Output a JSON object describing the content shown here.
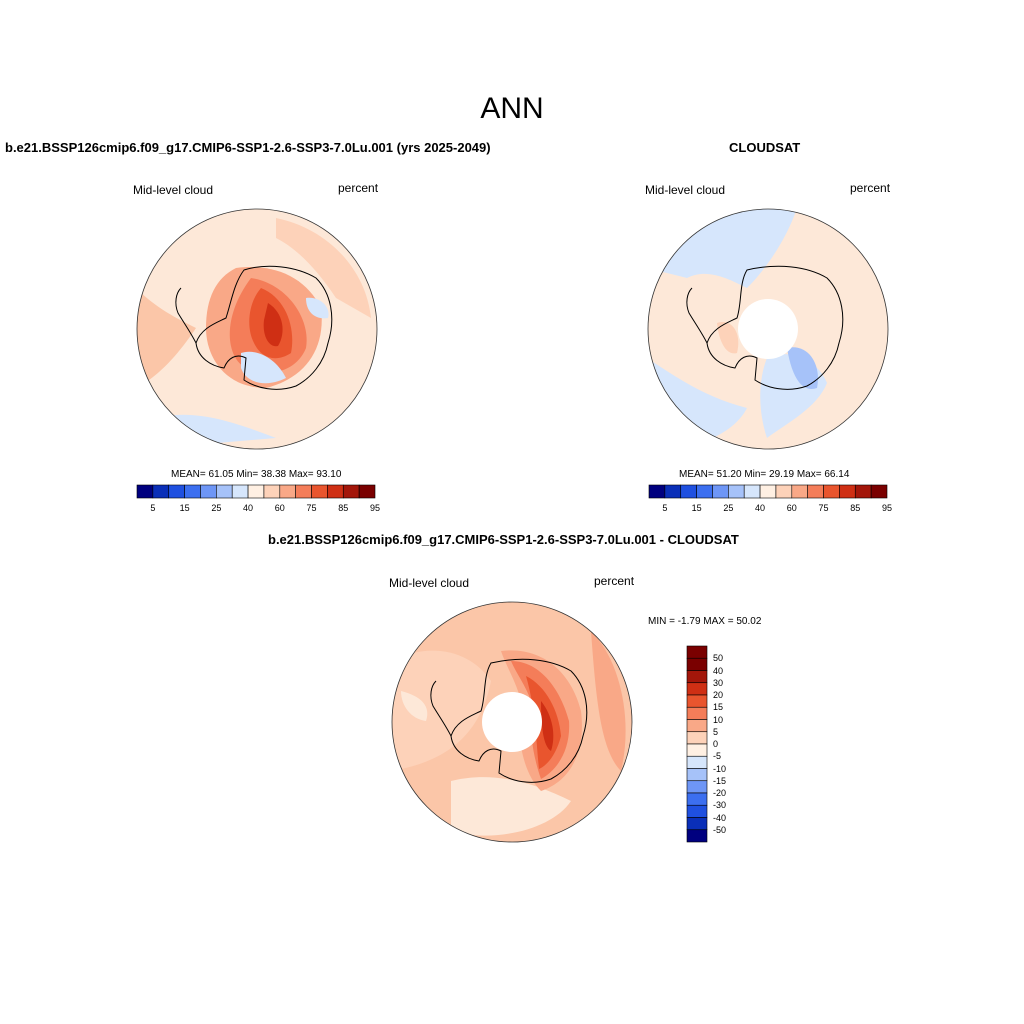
{
  "figure": {
    "title": "ANN",
    "panels": [
      {
        "id": "left",
        "title": "b.e21.BSSP126cmip6.f09_g17.CMIP6-SSP1-2.6-SSP3-7.0Lu.001 (yrs 2025-2049)",
        "variable": "Mid-level cloud",
        "units": "percent",
        "stats": "MEAN=  61.05  Min=  38.38  Max=  93.10",
        "colorbar_ticks": [
          "5",
          "15",
          "25",
          "40",
          "60",
          "75",
          "85",
          "95"
        ]
      },
      {
        "id": "right",
        "title": "CLOUDSAT",
        "variable": "Mid-level cloud",
        "units": "percent",
        "stats": "MEAN=  51.20  Min=  29.19  Max=  66.14",
        "colorbar_ticks": [
          "5",
          "15",
          "25",
          "40",
          "60",
          "75",
          "85",
          "95"
        ]
      },
      {
        "id": "diff",
        "title": "b.e21.BSSP126cmip6.f09_g17.CMIP6-SSP1-2.6-SSP3-7.0Lu.001 - CLOUDSAT",
        "variable": "Mid-level cloud",
        "units": "percent",
        "stats": "MIN =  -1.79 MAX =  50.02",
        "colorbar_ticks": [
          "50",
          "40",
          "30",
          "20",
          "15",
          "10",
          "5",
          "0",
          "-5",
          "-10",
          "-15",
          "-20",
          "-30",
          "-40",
          "-50"
        ]
      }
    ],
    "colors": {
      "sequential": [
        "#00007f",
        "#0a2fb8",
        "#1f50e0",
        "#3c6ff0",
        "#6e96f6",
        "#a6c2f9",
        "#d6e6fc",
        "#fff0e3",
        "#fdd2b9",
        "#f9a887",
        "#f47d59",
        "#e9552e",
        "#cf2f14",
        "#a3160a",
        "#7a0000"
      ],
      "diverging": [
        "#7a0000",
        "#a3160a",
        "#cf2f14",
        "#e9552e",
        "#f47d59",
        "#f9a887",
        "#fdd2b9",
        "#fff0e3",
        "#d6e6fc",
        "#a6c2f9",
        "#6e96f6",
        "#3c6ff0",
        "#1f50e0",
        "#0a2fb8",
        "#00007f"
      ],
      "ocean_fill": "#fde6d6",
      "coast_line": "#000000"
    }
  }
}
